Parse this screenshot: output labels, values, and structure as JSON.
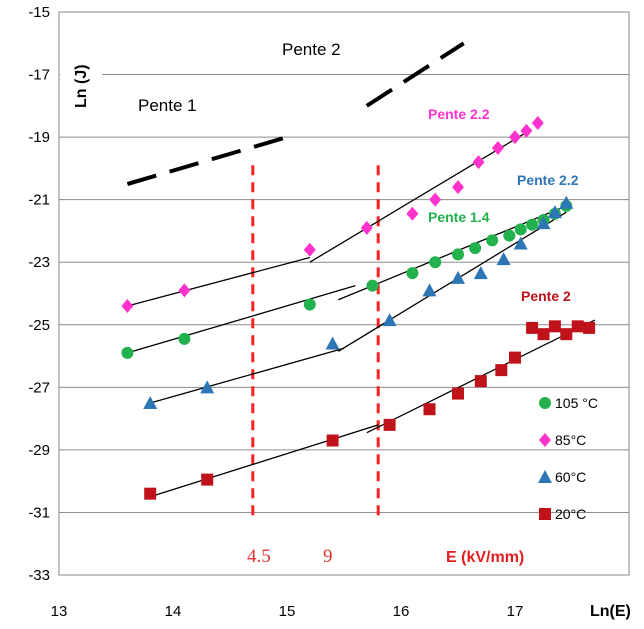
{
  "chart_data": {
    "type": "scatter",
    "xlabel": "Ln(E)",
    "ylabel": "Ln (J)",
    "xlim": [
      13,
      18
    ],
    "ylim": [
      -33,
      -15
    ],
    "x_ticks": [
      "13",
      "14",
      "15",
      "16",
      "17"
    ],
    "y_ticks": [
      "-15",
      "-17",
      "-19",
      "-21",
      "-23",
      "-25",
      "-27",
      "-29",
      "-31",
      "-33"
    ],
    "grid": "horizontal",
    "legend_position": "right",
    "series": [
      {
        "name": "105 °C",
        "color": "#22b14c",
        "marker": "circle",
        "points": [
          [
            13.6,
            -25.9
          ],
          [
            14.1,
            -25.45
          ],
          [
            15.2,
            -24.35
          ],
          [
            15.75,
            -23.75
          ],
          [
            16.1,
            -23.35
          ],
          [
            16.3,
            -23.0
          ],
          [
            16.5,
            -22.75
          ],
          [
            16.65,
            -22.55
          ],
          [
            16.8,
            -22.3
          ],
          [
            16.95,
            -22.15
          ],
          [
            17.05,
            -21.95
          ],
          [
            17.15,
            -21.8
          ],
          [
            17.25,
            -21.65
          ],
          [
            17.35,
            -21.45
          ],
          [
            17.45,
            -21.2
          ]
        ],
        "fits": [
          [
            [
              13.6,
              -25.9
            ],
            [
              15.6,
              -23.75
            ]
          ],
          [
            [
              15.45,
              -24.2
            ],
            [
              17.45,
              -21.2
            ]
          ]
        ]
      },
      {
        "name": "85°C",
        "color": "#ff33cc",
        "marker": "diamond",
        "points": [
          [
            13.6,
            -24.4
          ],
          [
            14.1,
            -23.9
          ],
          [
            15.2,
            -22.6
          ],
          [
            15.7,
            -21.9
          ],
          [
            16.1,
            -21.45
          ],
          [
            16.3,
            -21.0
          ],
          [
            16.5,
            -20.6
          ],
          [
            16.68,
            -19.8
          ],
          [
            16.85,
            -19.35
          ],
          [
            17.0,
            -19.0
          ],
          [
            17.1,
            -18.8
          ],
          [
            17.2,
            -18.55
          ]
        ],
        "fits": [
          [
            [
              13.6,
              -24.4
            ],
            [
              15.2,
              -22.85
            ]
          ],
          [
            [
              15.2,
              -23.0
            ],
            [
              17.1,
              -18.85
            ]
          ]
        ]
      },
      {
        "name": "60°C",
        "color": "#2e75b6",
        "marker": "triangle",
        "points": [
          [
            13.8,
            -27.5
          ],
          [
            14.3,
            -27.0
          ],
          [
            15.4,
            -25.6
          ],
          [
            15.9,
            -24.85
          ],
          [
            16.25,
            -23.9
          ],
          [
            16.5,
            -23.5
          ],
          [
            16.7,
            -23.35
          ],
          [
            16.9,
            -22.9
          ],
          [
            17.05,
            -22.4
          ],
          [
            17.25,
            -21.75
          ],
          [
            17.35,
            -21.4
          ],
          [
            17.45,
            -21.1
          ]
        ],
        "fits": [
          [
            [
              13.8,
              -27.5
            ],
            [
              15.5,
              -25.75
            ]
          ],
          [
            [
              15.45,
              -25.85
            ],
            [
              17.45,
              -21.4
            ]
          ]
        ]
      },
      {
        "name": "20°C",
        "color": "#c0121b",
        "marker": "square",
        "points": [
          [
            13.8,
            -30.4
          ],
          [
            14.3,
            -29.95
          ],
          [
            15.4,
            -28.7
          ],
          [
            15.9,
            -28.2
          ],
          [
            16.25,
            -27.7
          ],
          [
            16.5,
            -27.2
          ],
          [
            16.7,
            -26.8
          ],
          [
            16.88,
            -26.45
          ],
          [
            17.0,
            -26.05
          ],
          [
            17.15,
            -25.1
          ],
          [
            17.25,
            -25.3
          ],
          [
            17.35,
            -25.05
          ],
          [
            17.45,
            -25.3
          ],
          [
            17.55,
            -25.05
          ],
          [
            17.65,
            -25.1
          ]
        ],
        "fits": [
          [
            [
              13.8,
              -30.5
            ],
            [
              15.8,
              -28.2
            ]
          ],
          [
            [
              15.7,
              -28.45
            ],
            [
              17.7,
              -24.85
            ]
          ]
        ]
      }
    ],
    "dashed_reference": {
      "segments": [
        [
          [
            13.6,
            -20.5
          ],
          [
            15.0,
            -19.0
          ]
        ],
        [
          [
            15.7,
            -18.0
          ],
          [
            16.55,
            -16.0
          ]
        ]
      ],
      "labels": {
        "lower": "Pente 1",
        "upper": "Pente 2"
      }
    },
    "vertical_lines": [
      {
        "x": 14.7,
        "label": "4.5"
      },
      {
        "x": 15.8,
        "label": "9"
      }
    ],
    "unit_label": "E (kV/mm)",
    "annotations": {
      "s85": "Pente 2.2",
      "s60": "Pente  2.2",
      "s105": "Pente 1.4",
      "s20": "Pente 2"
    },
    "legend": [
      "105 °C",
      "85°C",
      "60°C",
      "20°C"
    ]
  }
}
